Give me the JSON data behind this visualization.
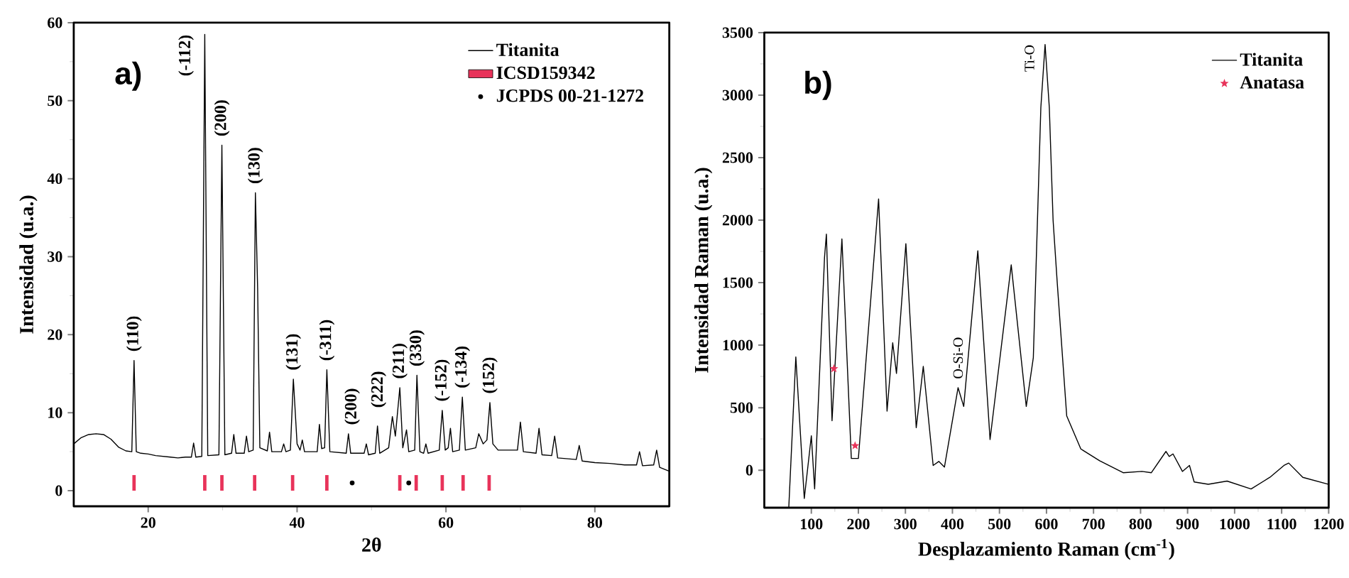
{
  "chart_data": [
    {
      "type": "line",
      "xlabel": "2θ",
      "ylabel": "Intensidad (u.a.)",
      "xlim": [
        10,
        90
      ],
      "ylim": [
        -2,
        60
      ],
      "xticks": [
        20,
        40,
        60,
        80
      ],
      "yticks": [
        0,
        10,
        20,
        30,
        40,
        50,
        60
      ],
      "legend": "top right",
      "series": [
        {
          "name": "Titanita",
          "color": "#000000",
          "x": [
            10,
            11,
            12,
            13,
            14,
            15,
            16,
            17,
            17.8,
            18.1,
            18.4,
            19,
            20,
            21,
            22,
            23,
            24,
            25,
            25.8,
            26.1,
            26.4,
            27.2,
            27.6,
            28.0,
            29.5,
            29.9,
            30.3,
            31.2,
            31.5,
            31.8,
            32.9,
            33.2,
            33.5,
            34.1,
            34.4,
            34.7,
            35,
            36,
            36.3,
            36.6,
            37.9,
            38.2,
            38.5,
            39.1,
            39.5,
            40,
            40.4,
            40.7,
            41.0,
            42.7,
            43.0,
            43.3,
            43.7,
            44.0,
            44.4,
            46.6,
            46.9,
            47.2,
            49.0,
            49.3,
            49.6,
            50.5,
            50.8,
            51.1,
            52.3,
            52.8,
            53.2,
            53.8,
            54.2,
            54.7,
            55.0,
            55.8,
            56.1,
            56.5,
            57.0,
            57.3,
            57.6,
            59.1,
            59.5,
            59.9,
            60.3,
            60.6,
            60.9,
            61.8,
            62.2,
            62.6,
            64.0,
            64.4,
            65.0,
            65.5,
            65.9,
            66.3,
            67,
            69.6,
            70.0,
            70.4,
            72.1,
            72.5,
            72.9,
            74.2,
            74.6,
            75,
            77.5,
            77.9,
            78.3,
            80,
            82,
            84,
            85.6,
            86,
            86.4,
            87.9,
            88.3,
            88.7,
            90
          ],
          "values": [
            6,
            6.8,
            7.2,
            7.3,
            7.2,
            6.6,
            5.6,
            5.1,
            5,
            16.7,
            5,
            4.8,
            4.7,
            4.5,
            4.4,
            4.3,
            4.2,
            4.3,
            4.3,
            6.1,
            4.3,
            4.4,
            58.5,
            4.5,
            4.6,
            44.3,
            4.6,
            4.8,
            7.2,
            4.8,
            4.8,
            7,
            5,
            5.2,
            38.2,
            26,
            5.5,
            5.1,
            7.5,
            5,
            5,
            6,
            5,
            5.2,
            14.3,
            6,
            5.2,
            6.5,
            5,
            5,
            8.5,
            5.4,
            5.5,
            15.5,
            5,
            4.8,
            7.3,
            4.8,
            4.8,
            6,
            4.6,
            4.8,
            8.3,
            4.8,
            5.5,
            9.5,
            7,
            13.2,
            5.5,
            7.8,
            5,
            5.2,
            14.8,
            5,
            4.8,
            6,
            4.8,
            5.2,
            10.3,
            5.2,
            5.5,
            8,
            5,
            5.2,
            12,
            5.2,
            5.5,
            7.3,
            6,
            6.5,
            11.3,
            6,
            5.2,
            5.2,
            8.8,
            5,
            4.8,
            8,
            4.6,
            4.5,
            7,
            4.2,
            4,
            5.8,
            3.8,
            3.6,
            3.5,
            3.3,
            3.3,
            5,
            3.2,
            3.3,
            5.2,
            3,
            2.5
          ]
        },
        {
          "name": "ICSD159342",
          "type": "bar",
          "color": "#e8335a",
          "x": [
            18.1,
            27.6,
            29.9,
            34.3,
            39.4,
            44.0,
            53.8,
            56.0,
            59.5,
            62.3,
            65.8
          ],
          "values": [
            2,
            2,
            2,
            2,
            2,
            2,
            2,
            2,
            2,
            2,
            2
          ]
        },
        {
          "name": "JCPDS 00-21-1272",
          "type": "scatter",
          "marker": "circle",
          "color": "#000000",
          "x": [
            47.4,
            55.0
          ],
          "values": [
            1,
            1
          ]
        }
      ],
      "annotations": [
        "a)",
        {
          "text": "(110)",
          "x": 18.1,
          "y": 16.7
        },
        {
          "text": "(-112)",
          "x": 27.6,
          "y": 58.5
        },
        {
          "text": "(200)",
          "x": 29.9,
          "y": 44.3
        },
        {
          "text": "(130)",
          "x": 34.4,
          "y": 38.2
        },
        {
          "text": "(131)",
          "x": 39.5,
          "y": 14.3
        },
        {
          "text": "(-311)",
          "x": 44.0,
          "y": 15.5
        },
        {
          "text": "(200)",
          "x": 47.4,
          "y": 7.3
        },
        {
          "text": "(211)",
          "x": 53.8,
          "y": 13.2
        },
        {
          "text": "(222)",
          "x": 52.8,
          "y": 9.5
        },
        {
          "text": "(330)",
          "x": 56.1,
          "y": 14.8
        },
        {
          "text": "(-152)",
          "x": 59.5,
          "y": 10.3
        },
        {
          "text": "(-134)",
          "x": 62.2,
          "y": 12
        },
        {
          "text": "(152)",
          "x": 65.9,
          "y": 11.3
        }
      ]
    },
    {
      "type": "line",
      "xlabel": "Desplazamiento Raman (cm$^{-1}$)",
      "ylabel": "Intensidad Raman (u.a.)",
      "xlim": [
        0,
        1200
      ],
      "ylim": [
        -300,
        3500
      ],
      "xticks": [
        100,
        200,
        300,
        400,
        500,
        600,
        700,
        800,
        900,
        1000,
        1100,
        1200
      ],
      "yticks": [
        0,
        500,
        1000,
        1500,
        2000,
        2500,
        3000,
        3500
      ],
      "legend": "top right",
      "series": [
        {
          "name": "Titanita",
          "color": "#000000",
          "x": [
            52,
            67,
            85,
            100,
            107,
            128,
            132,
            144,
            165,
            185,
            200,
            243,
            261,
            273,
            281,
            301,
            323,
            338,
            359,
            371,
            383,
            412,
            424,
            454,
            480,
            525,
            557,
            572,
            580,
            588,
            597,
            606,
            614,
            623,
            643,
            673,
            713,
            763,
            803,
            823,
            854,
            861,
            869,
            889,
            904,
            914,
            944,
            984,
            1035,
            1075,
            1105,
            1115,
            1145,
            1200
          ],
          "values": [
            -300,
            906,
            -226,
            275,
            -150,
            1700,
            1888,
            396,
            1850,
            94,
            94,
            2170,
            472,
            1019,
            774,
            1812,
            340,
            830,
            38,
            70,
            25,
            660,
            510,
            1755,
            245,
            1642,
            510,
            900,
            1900,
            2900,
            3405,
            2900,
            2000,
            1491,
            434,
            170,
            75,
            -20,
            -10,
            -20,
            150,
            110,
            130,
            -10,
            38,
            -94,
            -113,
            -87,
            -150,
            -57,
            38,
            57,
            -57,
            -113
          ]
        },
        {
          "name": "Anatasa",
          "type": "scatter",
          "marker": "star",
          "color": "#e8335a",
          "x": [
            148,
            193
          ],
          "values": [
            812,
            196
          ]
        }
      ],
      "annotations": [
        "b)",
        {
          "text": "O-Si-O",
          "x": 412,
          "y": 660
        },
        {
          "text": "Ti-O",
          "x": 597,
          "y": 3405
        }
      ]
    }
  ]
}
